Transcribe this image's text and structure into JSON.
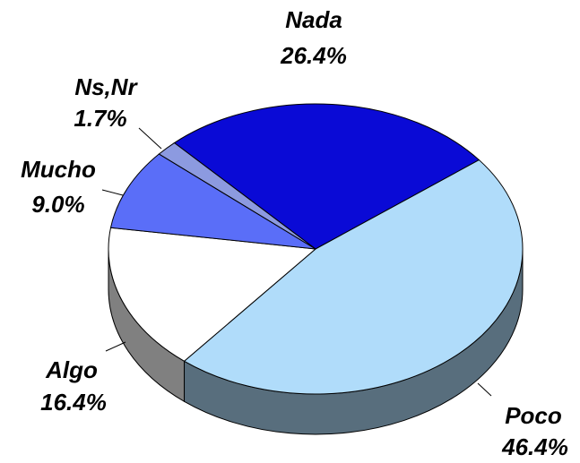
{
  "chart_data": {
    "type": "pie",
    "categories": [
      "Nada",
      "Poco",
      "Algo",
      "Mucho",
      "Ns,Nr"
    ],
    "values": [
      26.4,
      46.4,
      16.4,
      9.0,
      1.7
    ],
    "value_labels": [
      "26.4%",
      "46.4%",
      "16.4%",
      "9.0%",
      "1.7%"
    ],
    "colors": [
      "#0a0ad6",
      "#b0dcfa",
      "#ffffff",
      "#5a6ef8",
      "#8c9ae0"
    ]
  }
}
